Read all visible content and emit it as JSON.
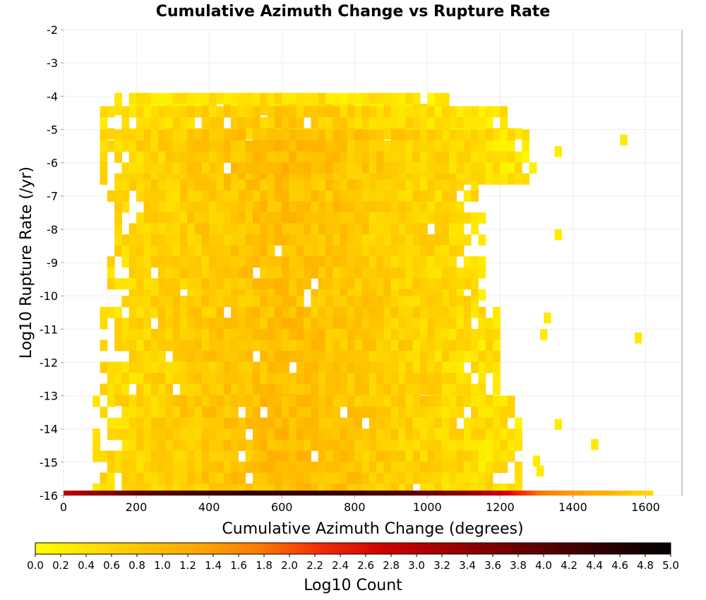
{
  "chart_data": {
    "type": "heatmap",
    "title": "Cumulative Azimuth Change vs Rupture Rate",
    "xlabel": "Cumulative Azimuth Change (degrees)",
    "ylabel": "Log10 Rupture Rate (/yr)",
    "xlim": [
      0,
      1700
    ],
    "ylim": [
      -16,
      -2
    ],
    "x_ticks": [
      "0",
      "200",
      "400",
      "600",
      "800",
      "1000",
      "1200",
      "1400",
      "1600"
    ],
    "x_tick_values": [
      0,
      200,
      400,
      600,
      800,
      1000,
      1200,
      1400,
      1600
    ],
    "y_ticks": [
      "-2",
      "-3",
      "-4",
      "-5",
      "-6",
      "-7",
      "-8",
      "-9",
      "-10",
      "-11",
      "-12",
      "-13",
      "-14",
      "-15",
      "-16"
    ],
    "y_tick_values": [
      -2,
      -3,
      -4,
      -5,
      -6,
      -7,
      -8,
      -9,
      -10,
      -11,
      -12,
      -13,
      -14,
      -15,
      -16
    ],
    "grid": true,
    "bin_width_x": 20,
    "bin_height_y": 0.33,
    "colorbar": {
      "label": "Log10 Count",
      "range": [
        0,
        5
      ],
      "ticks": [
        "0.0",
        "0.2",
        "0.4",
        "0.6",
        "0.8",
        "1.0",
        "1.2",
        "1.4",
        "1.6",
        "1.8",
        "2.0",
        "2.2",
        "2.4",
        "2.6",
        "2.8",
        "3.0",
        "3.2",
        "3.4",
        "3.6",
        "3.8",
        "4.0",
        "4.2",
        "4.4",
        "4.6",
        "4.8",
        "5.0"
      ],
      "colors": [
        "#ffff00",
        "#ffd000",
        "#ffa000",
        "#ff5000",
        "#e00000",
        "#900000",
        "#400000",
        "#000000"
      ]
    },
    "density_profile": {
      "description_rows": [
        {
          "y_from": -4.3,
          "y_to": -3.9,
          "x_from": 120,
          "x_to": 1050,
          "level": 0.45
        },
        {
          "y_from": -5.0,
          "y_to": -4.3,
          "x_from": 100,
          "x_to": 1250,
          "level": 0.7
        },
        {
          "y_from": -6.5,
          "y_to": -5.0,
          "x_from": 100,
          "x_to": 1300,
          "level": 0.9
        },
        {
          "y_from": -10.0,
          "y_to": -6.5,
          "x_from": 120,
          "x_to": 1150,
          "level": 0.85
        },
        {
          "y_from": -13.0,
          "y_to": -10.0,
          "x_from": 100,
          "x_to": 1200,
          "level": 0.85
        },
        {
          "y_from": -15.7,
          "y_to": -13.0,
          "x_from": 80,
          "x_to": 1250,
          "level": 0.9
        }
      ],
      "bottom_row": {
        "y": -16,
        "values": [
          [
            0,
            3.0
          ],
          [
            100,
            3.4
          ],
          [
            200,
            3.9
          ],
          [
            300,
            4.1
          ],
          [
            400,
            4.3
          ],
          [
            500,
            4.4
          ],
          [
            600,
            4.4
          ],
          [
            700,
            4.4
          ],
          [
            800,
            4.3
          ],
          [
            900,
            4.1
          ],
          [
            1000,
            3.8
          ],
          [
            1100,
            3.4
          ],
          [
            1200,
            2.8
          ],
          [
            1250,
            2.3
          ],
          [
            1300,
            1.8
          ],
          [
            1400,
            1.4
          ],
          [
            1500,
            1.1
          ],
          [
            1560,
            0.7
          ],
          [
            1620,
            0.5
          ]
        ]
      },
      "outliers": [
        {
          "x": 1530,
          "y": -5.15,
          "value": 0.3
        },
        {
          "x": 1570,
          "y": -11.1,
          "value": 0.3
        },
        {
          "x": 1450,
          "y": -14.3,
          "value": 0.3
        },
        {
          "x": 1350,
          "y": -13.7,
          "value": 0.3
        },
        {
          "x": 1350,
          "y": -8.0,
          "value": 0.3
        },
        {
          "x": 1350,
          "y": -5.5,
          "value": 0.3
        },
        {
          "x": 1300,
          "y": -15.1,
          "value": 0.3
        },
        {
          "x": 1290,
          "y": -14.8,
          "value": 0.3
        },
        {
          "x": 1320,
          "y": -10.5,
          "value": 0.3
        },
        {
          "x": 1310,
          "y": -11.0,
          "value": 0.3
        }
      ]
    }
  }
}
